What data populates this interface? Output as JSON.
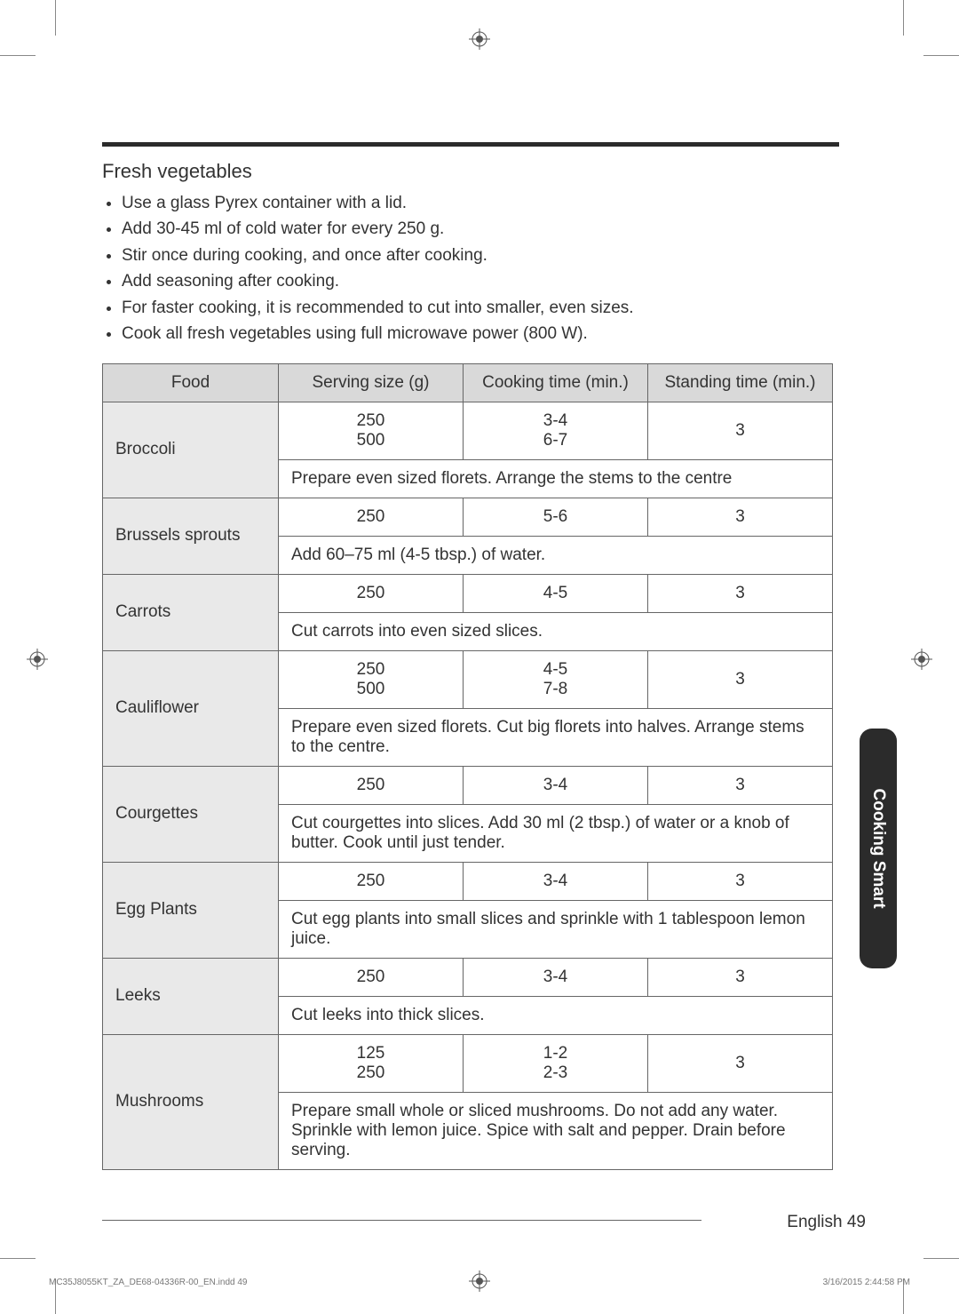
{
  "heading": "Fresh vegetables",
  "bullets": [
    "Use a glass Pyrex container with a lid.",
    "Add 30-45 ml of cold water for every 250 g.",
    "Stir once during cooking, and once after cooking.",
    "Add seasoning after cooking.",
    "For faster cooking, it is recommended to cut into smaller, even sizes.",
    "Cook all fresh vegetables using full microwave power (800 W)."
  ],
  "table": {
    "headers": {
      "food": "Food",
      "serving": "Serving size (g)",
      "cooking": "Cooking time (min.)",
      "standing": "Standing time (min.)"
    },
    "rows": [
      {
        "food": "Broccoli",
        "serving": "250\n500",
        "cooking": "3-4\n6-7",
        "standing": "3",
        "note": "Prepare even sized florets. Arrange the stems to the centre"
      },
      {
        "food": "Brussels sprouts",
        "serving": "250",
        "cooking": "5-6",
        "standing": "3",
        "note": "Add 60–75 ml (4-5 tbsp.) of water."
      },
      {
        "food": "Carrots",
        "serving": "250",
        "cooking": "4-5",
        "standing": "3",
        "note": "Cut carrots into even sized slices."
      },
      {
        "food": "Cauliflower",
        "serving": "250\n500",
        "cooking": "4-5\n7-8",
        "standing": "3",
        "note": "Prepare even sized florets. Cut big florets into halves. Arrange stems to the centre."
      },
      {
        "food": "Courgettes",
        "serving": "250",
        "cooking": "3-4",
        "standing": "3",
        "note": "Cut courgettes into slices. Add 30 ml (2 tbsp.) of water or a knob of butter. Cook until just tender."
      },
      {
        "food": "Egg Plants",
        "serving": "250",
        "cooking": "3-4",
        "standing": "3",
        "note": "Cut egg plants into small slices and sprinkle with 1 tablespoon lemon juice."
      },
      {
        "food": "Leeks",
        "serving": "250",
        "cooking": "3-4",
        "standing": "3",
        "note": "Cut leeks into thick slices."
      },
      {
        "food": "Mushrooms",
        "serving": "125\n250",
        "cooking": "1-2\n2-3",
        "standing": "3",
        "note": "Prepare small whole or sliced mushrooms. Do not add any water. Sprinkle with lemon juice. Spice with salt and pepper. Drain before serving."
      }
    ]
  },
  "sideTab": "Cooking Smart",
  "footer": {
    "langPage": "English  49",
    "metaLeft": "MC35J8055KT_ZA_DE68-04336R-00_EN.indd   49",
    "metaRight": "3/16/2015   2:44:58 PM"
  }
}
